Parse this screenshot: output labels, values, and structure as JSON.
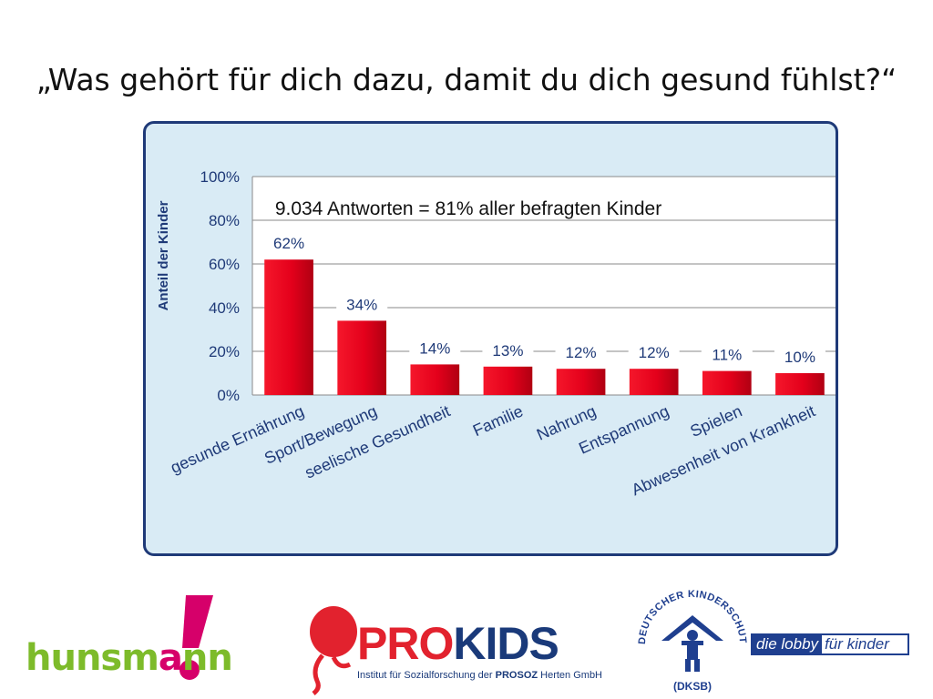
{
  "slide": {
    "title": "„Was gehört für dich dazu, damit du dich gesund fühlst?“"
  },
  "chart_data": {
    "type": "bar",
    "categories": [
      "gesunde Ernährung",
      "Sport/Bewegung",
      "seelische Gesundheit",
      "Familie",
      "Nahrung",
      "Entspannung",
      "Spielen",
      "Abwesenheit von Krankheit"
    ],
    "values": [
      62,
      34,
      14,
      13,
      12,
      12,
      11,
      10
    ],
    "value_labels": [
      "62%",
      "34%",
      "14%",
      "13%",
      "12%",
      "12%",
      "11%",
      "10%"
    ],
    "ylabel": "Anteil der Kinder",
    "yticks": [
      "0%",
      "20%",
      "40%",
      "60%",
      "80%",
      "100%"
    ],
    "ylim": [
      0,
      100
    ],
    "annotation": "9.034 Antworten = 81% aller befragten Kinder",
    "grid": true,
    "colors": {
      "bar": "#e4001b",
      "panel": "#d9ebf5",
      "border": "#1f3a78",
      "plot": "#ffffff"
    }
  },
  "logos": {
    "hunsmann": {
      "text_a": "hunsm",
      "text_b": "a",
      "text_c": "nn",
      "mark": "!"
    },
    "prokids": {
      "pro": "PRO",
      "kids": "KIDS",
      "subtitle_a": "Institut für Sozialforschung der ",
      "subtitle_b": "PROSOZ",
      "subtitle_c": " Herten GmbH"
    },
    "dksb": {
      "arc_text": "DEUTSCHER KINDERSCHUTZBUND E.V.",
      "abbrev": "(DKSB)",
      "tagline_a": "die lobby",
      "tagline_b": "für kinder"
    }
  }
}
